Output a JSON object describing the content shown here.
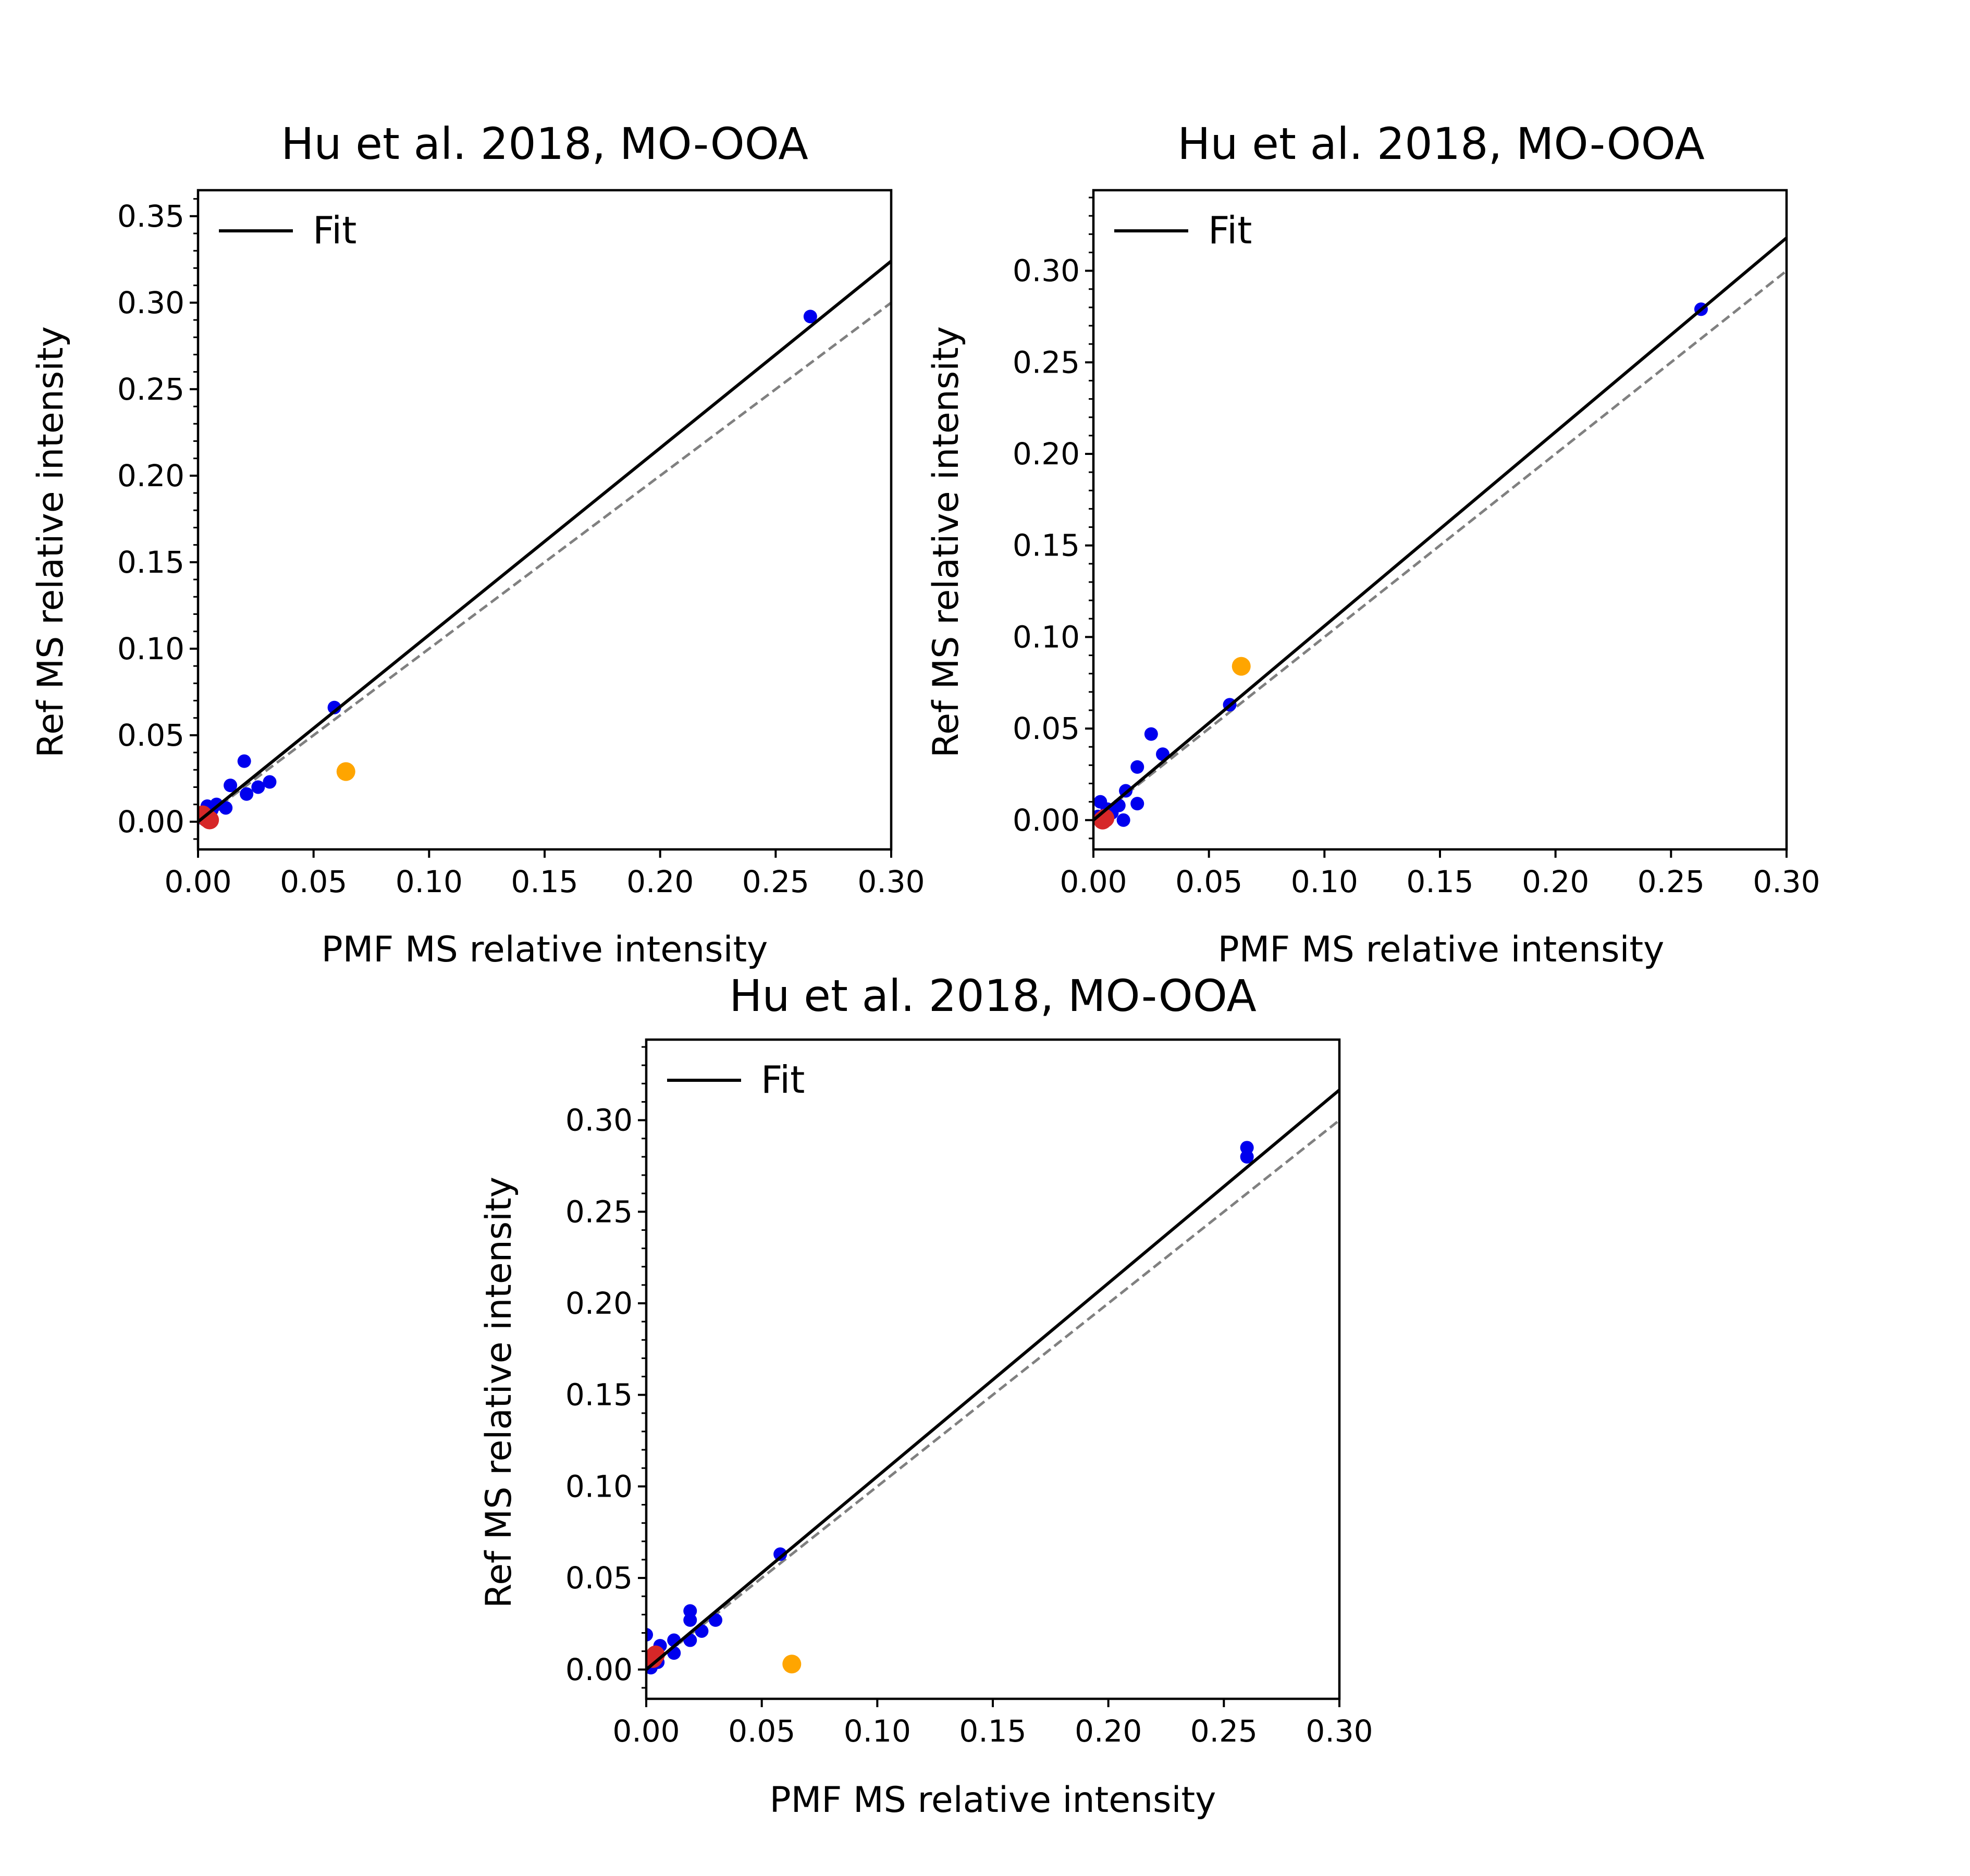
{
  "figure": {
    "colors": {
      "fit_line": "#000000",
      "one_to_one_line": "#808080",
      "point_blue": "#0000ee",
      "point_orange": "#ffa500",
      "point_red": "#d62728",
      "axes": "#000000",
      "background": "#ffffff"
    }
  },
  "chart_data": [
    {
      "type": "scatter",
      "title": "Hu et al. 2018, MO-OOA",
      "xlabel": "PMF MS relative intensity",
      "ylabel": "Ref MS relative intensity",
      "xlim": [
        0.0,
        0.3
      ],
      "ylim": [
        -0.016,
        0.365
      ],
      "xticks": [
        "0.00",
        "0.05",
        "0.10",
        "0.15",
        "0.20",
        "0.25",
        "0.30"
      ],
      "yticks": [
        "0.00",
        "0.05",
        "0.10",
        "0.15",
        "0.20",
        "0.25",
        "0.30",
        "0.35"
      ],
      "grid": false,
      "legend": {
        "position": "top-left",
        "entries": [
          "Fit"
        ]
      },
      "fit_line": {
        "slope": 1.08,
        "intercept": 0.0
      },
      "one_to_one_line": {
        "slope": 1.0,
        "intercept": 0.0
      },
      "series": [
        {
          "color": "blue",
          "points": [
            [
              0.265,
              0.292
            ],
            [
              0.059,
              0.066
            ],
            [
              0.02,
              0.035
            ],
            [
              0.014,
              0.021
            ],
            [
              0.031,
              0.023
            ],
            [
              0.026,
              0.02
            ],
            [
              0.021,
              0.016
            ],
            [
              0.012,
              0.008
            ],
            [
              0.008,
              0.01
            ],
            [
              0.006,
              0.007
            ],
            [
              0.004,
              0.009
            ],
            [
              0.003,
              0.005
            ],
            [
              0.002,
              0.002
            ],
            [
              0.001,
              0.003
            ],
            [
              0.005,
              0.004
            ]
          ]
        },
        {
          "color": "orange",
          "points": [
            [
              0.064,
              0.029
            ]
          ]
        },
        {
          "color": "red",
          "points": [
            [
              0.002,
              0.004
            ],
            [
              0.004,
              0.002
            ],
            [
              0.005,
              0.001
            ]
          ]
        }
      ]
    },
    {
      "type": "scatter",
      "title": "Hu et al. 2018, MO-OOA",
      "xlabel": "PMF MS relative intensity",
      "ylabel": "Ref MS relative intensity",
      "xlim": [
        0.0,
        0.3
      ],
      "ylim": [
        -0.016,
        0.344
      ],
      "xticks": [
        "0.00",
        "0.05",
        "0.10",
        "0.15",
        "0.20",
        "0.25",
        "0.30"
      ],
      "yticks": [
        "0.00",
        "0.05",
        "0.10",
        "0.15",
        "0.20",
        "0.25",
        "0.30"
      ],
      "grid": false,
      "legend": {
        "position": "top-left",
        "entries": [
          "Fit"
        ]
      },
      "fit_line": {
        "slope": 1.06,
        "intercept": 0.0
      },
      "one_to_one_line": {
        "slope": 1.0,
        "intercept": 0.0
      },
      "series": [
        {
          "color": "blue",
          "points": [
            [
              0.263,
              0.279
            ],
            [
              0.059,
              0.063
            ],
            [
              0.025,
              0.047
            ],
            [
              0.03,
              0.036
            ],
            [
              0.019,
              0.029
            ],
            [
              0.014,
              0.016
            ],
            [
              0.019,
              0.009
            ],
            [
              0.013,
              0.0
            ],
            [
              0.011,
              0.008
            ],
            [
              0.003,
              0.01
            ],
            [
              0.006,
              0.006
            ],
            [
              0.008,
              0.004
            ],
            [
              0.002,
              0.002
            ]
          ]
        },
        {
          "color": "orange",
          "points": [
            [
              0.064,
              0.084
            ]
          ]
        },
        {
          "color": "red",
          "points": [
            [
              0.004,
              0.0
            ],
            [
              0.005,
              0.001
            ]
          ]
        }
      ]
    },
    {
      "type": "scatter",
      "title": "Hu et al. 2018, MO-OOA",
      "xlabel": "PMF MS relative intensity",
      "ylabel": "Ref MS relative intensity",
      "xlim": [
        0.0,
        0.3
      ],
      "ylim": [
        -0.016,
        0.344
      ],
      "xticks": [
        "0.00",
        "0.05",
        "0.10",
        "0.15",
        "0.20",
        "0.25",
        "0.30"
      ],
      "yticks": [
        "0.00",
        "0.05",
        "0.10",
        "0.15",
        "0.20",
        "0.25",
        "0.30"
      ],
      "grid": false,
      "legend": {
        "position": "top-left",
        "entries": [
          "Fit"
        ]
      },
      "fit_line": {
        "slope": 1.055,
        "intercept": 0.0
      },
      "one_to_one_line": {
        "slope": 1.0,
        "intercept": 0.0
      },
      "series": [
        {
          "color": "blue",
          "points": [
            [
              0.26,
              0.285
            ],
            [
              0.26,
              0.28
            ],
            [
              0.058,
              0.063
            ],
            [
              0.019,
              0.032
            ],
            [
              0.03,
              0.027
            ],
            [
              0.019,
              0.027
            ],
            [
              0.024,
              0.021
            ],
            [
              0.019,
              0.016
            ],
            [
              0.012,
              0.016
            ],
            [
              0.012,
              0.009
            ],
            [
              0.006,
              0.013
            ],
            [
              0.0,
              0.019
            ],
            [
              0.003,
              0.008
            ],
            [
              0.005,
              0.004
            ],
            [
              0.002,
              0.001
            ],
            [
              0.001,
              0.006
            ]
          ]
        },
        {
          "color": "orange",
          "points": [
            [
              0.063,
              0.003
            ]
          ]
        },
        {
          "color": "red",
          "points": [
            [
              0.003,
              0.006
            ],
            [
              0.004,
              0.008
            ]
          ]
        }
      ]
    }
  ]
}
